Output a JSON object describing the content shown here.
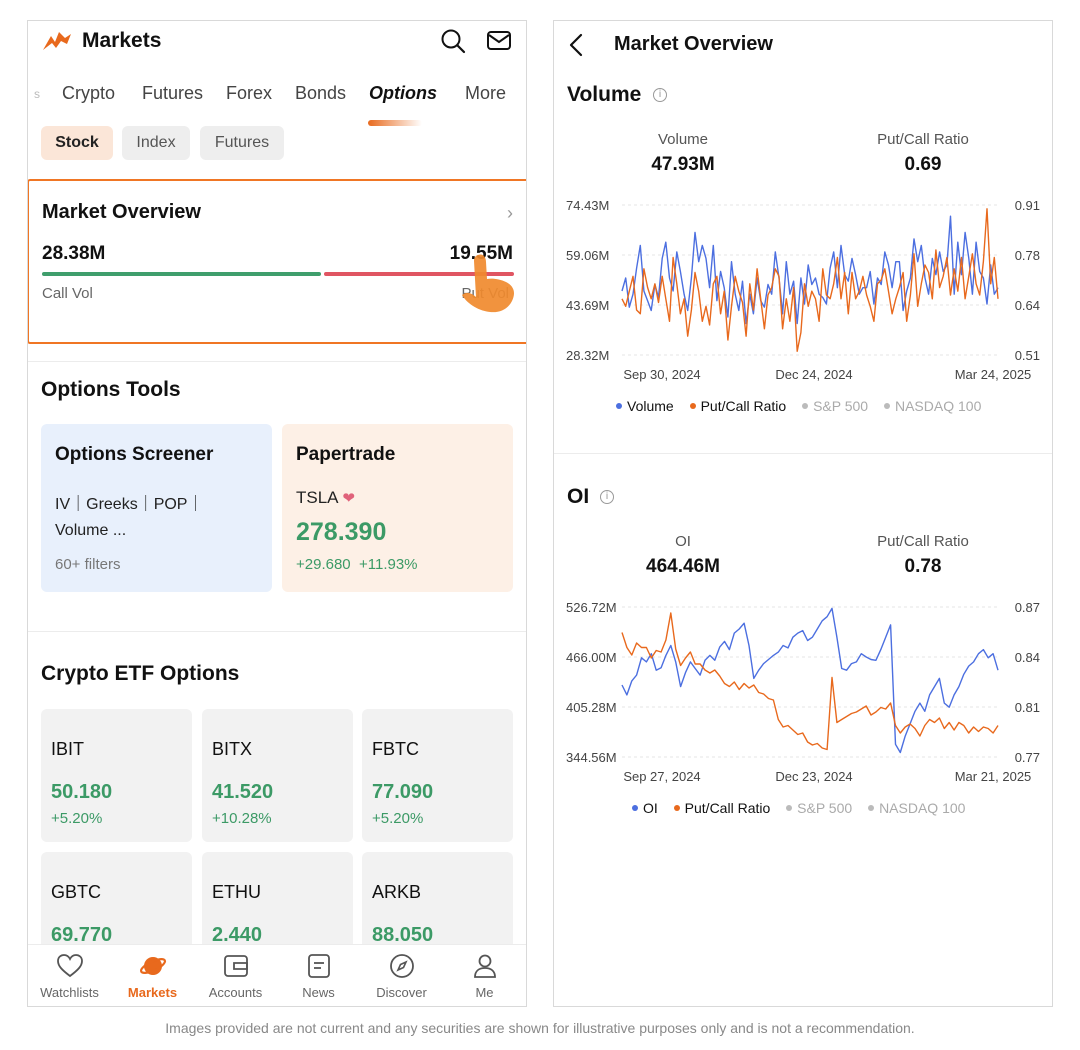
{
  "colors": {
    "accent": "#e8691d",
    "up": "#3c9a66",
    "down": "#e05562",
    "volume_line": "#4c6fe0",
    "ratio_line": "#e8691d"
  },
  "left": {
    "app_title": "Markets",
    "icons": [
      "search-icon",
      "mail-icon"
    ],
    "tabs": {
      "partial": "s",
      "crypto": "Crypto",
      "futures": "Futures",
      "forex": "Forex",
      "bonds": "Bonds",
      "options": "Options",
      "more": "More"
    },
    "chips": {
      "stock": "Stock",
      "index": "Index",
      "futures": "Futures"
    },
    "market_overview": {
      "title": "Market Overview",
      "call_value": "28.38M",
      "put_value": "19.55M",
      "call_label": "Call Vol",
      "put_label": "Put Vol",
      "call_fraction": 0.592
    },
    "options_tools": {
      "title": "Options Tools",
      "screener": {
        "title": "Options Screener",
        "line1": "IV｜Greeks｜POP｜",
        "line2": "Volume ...",
        "sub": "60+ filters"
      },
      "papertrade": {
        "title": "Papertrade",
        "symbol": "TSLA",
        "price": "278.390",
        "change": "+29.680",
        "change_pct": "+11.93%"
      }
    },
    "crypto_etf": {
      "title": "Crypto ETF Options",
      "items": [
        {
          "name": "IBIT",
          "price": "50.180",
          "change": "+5.20%"
        },
        {
          "name": "BITX",
          "price": "41.520",
          "change": "+10.28%"
        },
        {
          "name": "FBTC",
          "price": "77.090",
          "change": "+5.20%"
        },
        {
          "name": "GBTC",
          "price": "69.770",
          "change": ""
        },
        {
          "name": "ETHU",
          "price": "2.440",
          "change": ""
        },
        {
          "name": "ARKB",
          "price": "88.050",
          "change": ""
        }
      ]
    },
    "nav": [
      {
        "label": "Watchlists",
        "icon": "heart-icon"
      },
      {
        "label": "Markets",
        "icon": "planet-icon"
      },
      {
        "label": "Accounts",
        "icon": "wallet-icon"
      },
      {
        "label": "News",
        "icon": "news-icon"
      },
      {
        "label": "Discover",
        "icon": "compass-icon"
      },
      {
        "label": "Me",
        "icon": "person-icon"
      }
    ]
  },
  "right": {
    "title": "Market Overview",
    "volume": {
      "title": "Volume",
      "stat1_label": "Volume",
      "stat1_value": "47.93M",
      "stat2_label": "Put/Call Ratio",
      "stat2_value": "0.69"
    },
    "oi": {
      "title": "OI",
      "stat1_label": "OI",
      "stat1_value": "464.46M",
      "stat2_label": "Put/Call Ratio",
      "stat2_value": "0.78"
    }
  },
  "chart_data": [
    {
      "type": "line",
      "title": "Volume",
      "x_ticks": [
        "Sep 30, 2024",
        "Dec 24, 2024",
        "Mar 24, 2025"
      ],
      "y_left_ticks": [
        "74.43M",
        "59.06M",
        "43.69M",
        "28.32M"
      ],
      "y_right_ticks": [
        "0.91",
        "0.78",
        "0.64",
        "0.51"
      ],
      "ylim_left": [
        28.32,
        74.43
      ],
      "ylim_right": [
        0.51,
        0.91
      ],
      "series": [
        {
          "name": "Volume",
          "axis": "left",
          "color": "#4c6fe0",
          "values": [
            48,
            52,
            43,
            47,
            55,
            62,
            48,
            45,
            42,
            50,
            46,
            58,
            63,
            52,
            48,
            60,
            54,
            47,
            42,
            52,
            66,
            57,
            62,
            58,
            49,
            62,
            45,
            54,
            49,
            40,
            57,
            47,
            42,
            51,
            38,
            47,
            41,
            52,
            45,
            43,
            50,
            47,
            60,
            52,
            41,
            57,
            47,
            51,
            38,
            52,
            44,
            56,
            50,
            52,
            47,
            46,
            44,
            55,
            60,
            49,
            62,
            53,
            51,
            58,
            53,
            47,
            49,
            49,
            54,
            44,
            52,
            50,
            60,
            56,
            49,
            57,
            57,
            42,
            48,
            52,
            64,
            57,
            62,
            52,
            47,
            58,
            53,
            60,
            54,
            56,
            71,
            47,
            63,
            53,
            66,
            58,
            47,
            63,
            54,
            52,
            44,
            56,
            47,
            49
          ]
        },
        {
          "name": "Put/Call Ratio",
          "axis": "right",
          "color": "#e8691d",
          "values": [
            0.66,
            0.64,
            0.68,
            0.72,
            0.63,
            0.62,
            0.74,
            0.69,
            0.66,
            0.7,
            0.65,
            0.72,
            0.66,
            0.6,
            0.77,
            0.7,
            0.62,
            0.66,
            0.56,
            0.63,
            0.73,
            0.68,
            0.6,
            0.64,
            0.59,
            0.7,
            0.72,
            0.62,
            0.68,
            0.55,
            0.64,
            0.72,
            0.68,
            0.65,
            0.56,
            0.7,
            0.63,
            0.74,
            0.66,
            0.58,
            0.67,
            0.69,
            0.74,
            0.72,
            0.58,
            0.66,
            0.6,
            0.69,
            0.52,
            0.57,
            0.7,
            0.64,
            0.68,
            0.66,
            0.6,
            0.74,
            0.67,
            0.66,
            0.7,
            0.77,
            0.66,
            0.73,
            0.62,
            0.73,
            0.66,
            0.68,
            0.72,
            0.67,
            0.64,
            0.6,
            0.7,
            0.71,
            0.74,
            0.68,
            0.62,
            0.66,
            0.69,
            0.73,
            0.6,
            0.67,
            0.78,
            0.64,
            0.7,
            0.75,
            0.73,
            0.66,
            0.79,
            0.69,
            0.72,
            0.77,
            0.67,
            0.74,
            0.68,
            0.77,
            0.66,
            0.72,
            0.78,
            0.7,
            0.67,
            0.76,
            0.9,
            0.7,
            0.77,
            0.66
          ]
        },
        {
          "name": "S&P 500",
          "axis": "left",
          "color": "#bbbbbb",
          "values": []
        },
        {
          "name": "NASDAQ 100",
          "axis": "left",
          "color": "#bbbbbb",
          "values": []
        }
      ],
      "legend": "bottom"
    },
    {
      "type": "line",
      "title": "OI",
      "x_ticks": [
        "Sep 27, 2024",
        "Dec 23, 2024",
        "Mar 21, 2025"
      ],
      "y_left_ticks": [
        "526.72M",
        "466.00M",
        "405.28M",
        "344.56M"
      ],
      "y_right_ticks": [
        "0.87",
        "0.84",
        "0.81",
        "0.77"
      ],
      "ylim_left": [
        344.56,
        526.72
      ],
      "ylim_right": [
        0.77,
        0.87
      ],
      "series": [
        {
          "name": "OI",
          "axis": "left",
          "color": "#4c6fe0",
          "values": [
            432,
            420,
            437,
            444,
            465,
            460,
            470,
            450,
            453,
            468,
            480,
            460,
            430,
            447,
            460,
            452,
            444,
            462,
            468,
            462,
            478,
            485,
            475,
            495,
            500,
            507,
            480,
            440,
            450,
            458,
            463,
            468,
            472,
            480,
            477,
            490,
            495,
            498,
            486,
            490,
            500,
            510,
            515,
            525,
            490,
            452,
            450,
            458,
            460,
            470,
            466,
            463,
            462,
            475,
            490,
            505,
            360,
            350,
            370,
            385,
            400,
            410,
            400,
            420,
            430,
            440,
            410,
            405,
            420,
            430,
            445,
            455,
            460,
            470,
            475,
            465,
            470,
            450
          ]
        },
        {
          "name": "Put/Call Ratio",
          "axis": "right",
          "color": "#e8691d",
          "values": [
            0.853,
            0.843,
            0.838,
            0.846,
            0.843,
            0.843,
            0.836,
            0.841,
            0.84,
            0.848,
            0.866,
            0.842,
            0.831,
            0.836,
            0.84,
            0.832,
            0.832,
            0.828,
            0.826,
            0.828,
            0.824,
            0.819,
            0.817,
            0.82,
            0.815,
            0.819,
            0.816,
            0.818,
            0.813,
            0.812,
            0.809,
            0.808,
            0.795,
            0.79,
            0.791,
            0.788,
            0.785,
            0.786,
            0.78,
            0.778,
            0.779,
            0.776,
            0.775,
            0.823,
            0.793,
            0.795,
            0.797,
            0.799,
            0.8,
            0.802,
            0.804,
            0.798,
            0.8,
            0.803,
            0.802,
            0.806,
            0.791,
            0.786,
            0.79,
            0.792,
            0.789,
            0.784,
            0.791,
            0.795,
            0.793,
            0.796,
            0.789,
            0.793,
            0.788,
            0.793,
            0.791,
            0.786,
            0.79,
            0.787,
            0.79,
            0.789,
            0.786,
            0.791
          ]
        },
        {
          "name": "S&P 500",
          "axis": "left",
          "color": "#bbbbbb",
          "values": []
        },
        {
          "name": "NASDAQ 100",
          "axis": "left",
          "color": "#bbbbbb",
          "values": []
        }
      ],
      "legend": "bottom"
    }
  ],
  "disclaimer": "Images provided are not current and any securities are shown for illustrative purposes only and is not a recommendation."
}
